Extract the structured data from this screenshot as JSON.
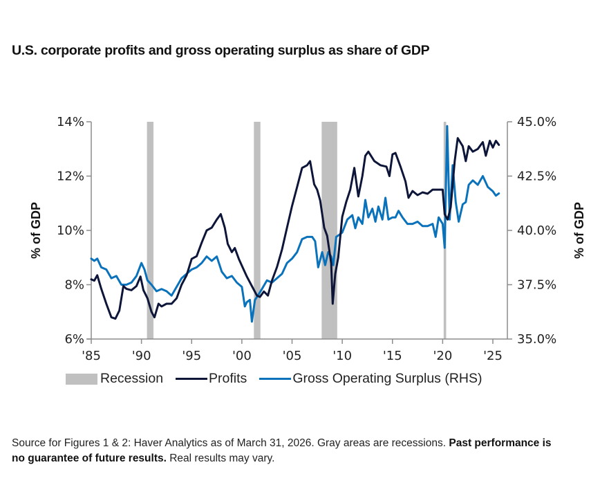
{
  "title": "U.S. corporate profits and gross operating surplus as share of GDP",
  "footer": {
    "source_text": "Source for Figures 1 & 2: Haver Analytics as of March 31, 2026. Gray areas are recessions. ",
    "disclaimer_bold": "Past performance is no guarantee of future results.",
    "disclaimer_tail": " Real results may vary."
  },
  "chart_data": {
    "type": "line",
    "title": "U.S. corporate profits and gross operating surplus as share of GDP",
    "xlabel": "",
    "ylabel": "% of GDP",
    "ylabel_right": "% of GDP",
    "xlim": [
      1985,
      2026.5
    ],
    "ylim": [
      6,
      14
    ],
    "ylim_right": [
      35,
      45
    ],
    "x_ticks": [
      1985,
      1990,
      1995,
      2000,
      2005,
      2010,
      2015,
      2020,
      2025
    ],
    "x_tick_labels": [
      "'85",
      "'90",
      "'95",
      "'00",
      "'05",
      "'10",
      "'15",
      "'20",
      "'25"
    ],
    "y_ticks": [
      6,
      8,
      10,
      12,
      14
    ],
    "y_tick_labels": [
      "6%",
      "8%",
      "10%",
      "12%",
      "14%"
    ],
    "y_ticks_right": [
      35,
      37.5,
      40,
      42.5,
      45
    ],
    "y_tick_labels_right": [
      "35.0%",
      "37.5%",
      "40.0%",
      "42.5%",
      "45.0%"
    ],
    "grid": false,
    "legend_position": "bottom",
    "legend": [
      "Recession",
      "Profits",
      "Gross Operating Surplus (RHS)"
    ],
    "colors": {
      "recession": "#c0c0c0",
      "profits": "#0d1538",
      "gos": "#0a72bb",
      "axis": "#8c8c8c"
    },
    "recessions": [
      {
        "start": 1990.55,
        "end": 1991.2
      },
      {
        "start": 2001.2,
        "end": 2001.85
      },
      {
        "start": 2007.95,
        "end": 2009.5
      },
      {
        "start": 2020.1,
        "end": 2020.35
      }
    ],
    "series": [
      {
        "name": "Profits",
        "axis": "left",
        "x": [
          1985.0,
          1985.3,
          1985.6,
          1986.0,
          1986.5,
          1987.0,
          1987.4,
          1987.8,
          1988.2,
          1988.5,
          1989.0,
          1989.5,
          1989.9,
          1990.2,
          1990.6,
          1991.0,
          1991.3,
          1991.7,
          1992.0,
          1992.5,
          1993.0,
          1993.5,
          1994.0,
          1994.5,
          1995.0,
          1995.5,
          1996.0,
          1996.5,
          1997.0,
          1997.5,
          1997.9,
          1998.3,
          1998.6,
          1999.0,
          1999.3,
          1999.7,
          2000.0,
          2000.5,
          2001.0,
          2001.5,
          2001.8,
          2002.2,
          2002.6,
          2003.0,
          2003.5,
          2004.0,
          2004.5,
          2005.0,
          2005.5,
          2006.0,
          2006.5,
          2006.8,
          2007.2,
          2007.5,
          2007.8,
          2008.2,
          2008.5,
          2008.9,
          2009.05,
          2009.3,
          2009.6,
          2010.0,
          2010.4,
          2010.8,
          2011.2,
          2011.6,
          2012.0,
          2012.3,
          2012.6,
          2013.2,
          2013.8,
          2014.4,
          2014.7,
          2015.0,
          2015.3,
          2015.8,
          2016.3,
          2016.6,
          2017.0,
          2017.5,
          2018.0,
          2018.5,
          2019.0,
          2019.5,
          2020.0,
          2020.2,
          2020.5,
          2020.8,
          2021.2,
          2021.5,
          2022.0,
          2022.3,
          2022.6,
          2023.0,
          2023.5,
          2024.0,
          2024.3,
          2024.7,
          2025.0,
          2025.3,
          2025.6
        ],
        "values": [
          8.2,
          8.15,
          8.35,
          7.85,
          7.3,
          6.8,
          6.75,
          7.05,
          7.95,
          7.85,
          7.8,
          7.95,
          8.3,
          7.8,
          7.5,
          7.0,
          6.8,
          7.3,
          7.2,
          7.3,
          7.3,
          7.5,
          8.0,
          8.35,
          8.95,
          9.05,
          9.55,
          10.0,
          10.1,
          10.4,
          10.6,
          10.1,
          9.5,
          9.2,
          9.35,
          8.95,
          8.7,
          8.3,
          7.95,
          7.6,
          7.55,
          7.75,
          7.6,
          8.15,
          8.65,
          9.3,
          10.1,
          10.9,
          11.6,
          12.3,
          12.4,
          12.55,
          11.7,
          11.5,
          11.1,
          10.1,
          9.8,
          8.8,
          7.3,
          8.4,
          9.0,
          10.5,
          11.05,
          11.5,
          12.3,
          11.25,
          12.0,
          12.75,
          12.9,
          12.55,
          12.4,
          12.35,
          12.0,
          12.8,
          12.85,
          12.35,
          11.8,
          11.2,
          11.45,
          11.3,
          11.4,
          11.35,
          11.5,
          11.5,
          11.5,
          10.6,
          10.4,
          10.85,
          12.55,
          13.4,
          13.1,
          12.55,
          13.1,
          12.9,
          13.0,
          13.25,
          12.75,
          13.3,
          13.05,
          13.3,
          13.15
        ]
      },
      {
        "name": "Gross Operating Surplus (RHS)",
        "axis": "right",
        "x": [
          1985.0,
          1985.3,
          1985.6,
          1986.0,
          1986.5,
          1987.0,
          1987.5,
          1988.0,
          1988.5,
          1989.0,
          1989.5,
          1990.0,
          1990.3,
          1990.6,
          1991.0,
          1991.5,
          1992.0,
          1992.5,
          1993.0,
          1993.5,
          1994.0,
          1994.5,
          1995.0,
          1995.5,
          1996.0,
          1996.5,
          1997.0,
          1997.5,
          1998.0,
          1998.5,
          1999.0,
          1999.5,
          2000.0,
          2000.3,
          2000.5,
          2000.8,
          2001.0,
          2001.3,
          2001.6,
          2002.0,
          2002.5,
          2003.0,
          2003.5,
          2004.0,
          2004.5,
          2005.0,
          2005.5,
          2006.0,
          2006.5,
          2007.0,
          2007.3,
          2007.6,
          2008.0,
          2008.3,
          2008.6,
          2008.9,
          2009.1,
          2009.4,
          2009.7,
          2010.0,
          2010.5,
          2011.0,
          2011.3,
          2011.6,
          2012.0,
          2012.3,
          2012.6,
          2013.0,
          2013.3,
          2013.6,
          2014.0,
          2014.3,
          2014.6,
          2015.0,
          2015.3,
          2015.6,
          2016.0,
          2016.5,
          2017.0,
          2017.5,
          2018.0,
          2018.5,
          2019.0,
          2019.3,
          2019.6,
          2020.0,
          2020.2,
          2020.45,
          2020.7,
          2021.0,
          2021.3,
          2021.6,
          2022.0,
          2022.3,
          2022.6,
          2023.0,
          2023.5,
          2024.0,
          2024.5,
          2025.0,
          2025.3,
          2025.6
        ],
        "values": [
          38.7,
          38.6,
          38.7,
          38.3,
          38.2,
          37.8,
          37.9,
          37.5,
          37.5,
          37.6,
          37.9,
          38.5,
          38.2,
          37.7,
          37.5,
          37.2,
          37.3,
          37.2,
          37.0,
          37.4,
          37.8,
          38.0,
          38.2,
          38.3,
          38.5,
          38.8,
          38.6,
          38.8,
          38.1,
          37.8,
          37.9,
          37.6,
          37.4,
          36.5,
          36.7,
          36.8,
          35.8,
          36.8,
          37.0,
          37.3,
          37.7,
          37.6,
          37.8,
          38.0,
          38.5,
          38.7,
          39.0,
          39.6,
          39.7,
          39.7,
          39.5,
          38.3,
          39.0,
          38.4,
          39.0,
          38.8,
          38.4,
          39.7,
          39.8,
          39.9,
          40.5,
          40.7,
          40.1,
          40.6,
          40.3,
          41.4,
          40.6,
          41.0,
          40.4,
          41.1,
          40.5,
          41.5,
          40.5,
          40.6,
          40.6,
          40.9,
          40.6,
          40.3,
          40.3,
          40.4,
          40.2,
          40.2,
          40.3,
          39.7,
          40.6,
          40.3,
          39.2,
          44.8,
          40.5,
          43.0,
          41.3,
          40.4,
          41.2,
          41.3,
          42.1,
          42.3,
          42.1,
          42.5,
          42.0,
          41.8,
          41.6,
          41.7
        ]
      }
    ]
  }
}
